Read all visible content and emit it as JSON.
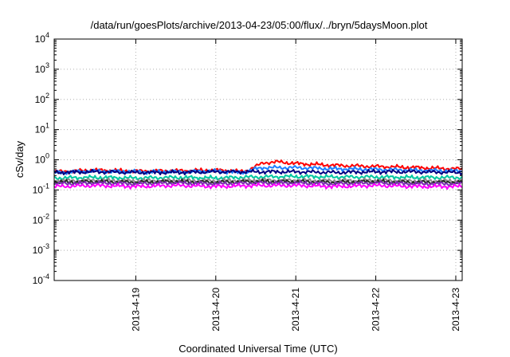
{
  "chart_data": {
    "type": "line",
    "title": "/data/run/goesPlots/archive/2013-04-23/05:00/flux/../bryn/5daysMoon.plot",
    "xlabel": "Coordinated Universal Time (UTC)",
    "ylabel": "cSv/day",
    "y_scale": "log",
    "ylim_exponent": [
      -4,
      4
    ],
    "y_tick_exponents": [
      -4,
      -3,
      -2,
      -1,
      0,
      1,
      2,
      3,
      4
    ],
    "y_tick_base": "10",
    "x_tick_labels": [
      "2013-4-19",
      "2013-4-20",
      "2013-4-21",
      "2013-4-22",
      "2013-4-23"
    ],
    "xlim_days": [
      -1.02,
      4.08
    ],
    "grid": true,
    "legend": "none",
    "series": [
      {
        "color": "#ff0000",
        "x_days": [
          -1.0,
          -0.5,
          0.0,
          0.5,
          1.0,
          1.2,
          1.3,
          1.4,
          1.5,
          1.6,
          1.8,
          2.0,
          2.5,
          3.0,
          3.5,
          4.0,
          4.08
        ],
        "values": [
          0.4,
          0.45,
          0.42,
          0.43,
          0.45,
          0.43,
          0.4,
          0.45,
          0.6,
          0.8,
          0.85,
          0.75,
          0.65,
          0.6,
          0.55,
          0.5,
          0.5
        ]
      },
      {
        "color": "#1f7fff",
        "x_days": [
          -1.0,
          -0.5,
          0.0,
          0.5,
          1.0,
          1.2,
          1.3,
          1.4,
          1.5,
          1.6,
          1.8,
          2.0,
          2.5,
          3.0,
          3.5,
          4.0,
          4.08
        ],
        "values": [
          0.38,
          0.42,
          0.4,
          0.4,
          0.42,
          0.4,
          0.37,
          0.4,
          0.5,
          0.55,
          0.55,
          0.55,
          0.5,
          0.48,
          0.45,
          0.42,
          0.42
        ]
      },
      {
        "color": "#000080",
        "x_days": [
          -1.0,
          -0.5,
          0.0,
          0.5,
          1.0,
          1.5,
          2.0,
          2.5,
          3.0,
          3.5,
          4.0,
          4.08
        ],
        "values": [
          0.38,
          0.4,
          0.38,
          0.38,
          0.4,
          0.4,
          0.4,
          0.38,
          0.4,
          0.4,
          0.38,
          0.38
        ]
      },
      {
        "color": "#00c8a0",
        "x_days": [
          -1.0,
          -0.5,
          0.0,
          0.5,
          1.0,
          1.5,
          2.0,
          2.5,
          3.0,
          3.5,
          4.0,
          4.08
        ],
        "values": [
          0.25,
          0.26,
          0.25,
          0.26,
          0.25,
          0.27,
          0.28,
          0.27,
          0.27,
          0.26,
          0.26,
          0.26
        ]
      },
      {
        "color": "#8c8c8c",
        "x_days": [
          -1.0,
          -0.5,
          0.0,
          0.5,
          1.0,
          1.5,
          2.0,
          2.5,
          3.0,
          3.5,
          4.0,
          4.08
        ],
        "values": [
          0.2,
          0.21,
          0.2,
          0.21,
          0.2,
          0.21,
          0.21,
          0.2,
          0.21,
          0.2,
          0.2,
          0.2
        ]
      },
      {
        "color": "#282828",
        "x_days": [
          -1.0,
          -0.5,
          0.0,
          0.5,
          1.0,
          1.5,
          2.0,
          2.5,
          3.0,
          3.5,
          4.0,
          4.08
        ],
        "values": [
          0.18,
          0.19,
          0.18,
          0.19,
          0.18,
          0.19,
          0.19,
          0.18,
          0.19,
          0.18,
          0.18,
          0.18
        ]
      },
      {
        "color": "#7b2fb0",
        "x_days": [
          -1.0,
          -0.5,
          0.0,
          0.5,
          1.0,
          1.5,
          2.0,
          2.5,
          3.0,
          3.5,
          4.0,
          4.08
        ],
        "values": [
          0.16,
          0.17,
          0.16,
          0.17,
          0.16,
          0.17,
          0.17,
          0.16,
          0.17,
          0.16,
          0.16,
          0.16
        ]
      },
      {
        "color": "#ff00ff",
        "x_days": [
          -1.0,
          -0.5,
          0.0,
          0.5,
          1.0,
          1.5,
          2.0,
          2.5,
          3.0,
          3.5,
          4.0,
          4.08
        ],
        "values": [
          0.13,
          0.14,
          0.13,
          0.14,
          0.13,
          0.14,
          0.14,
          0.13,
          0.14,
          0.13,
          0.13,
          0.13
        ]
      }
    ]
  }
}
